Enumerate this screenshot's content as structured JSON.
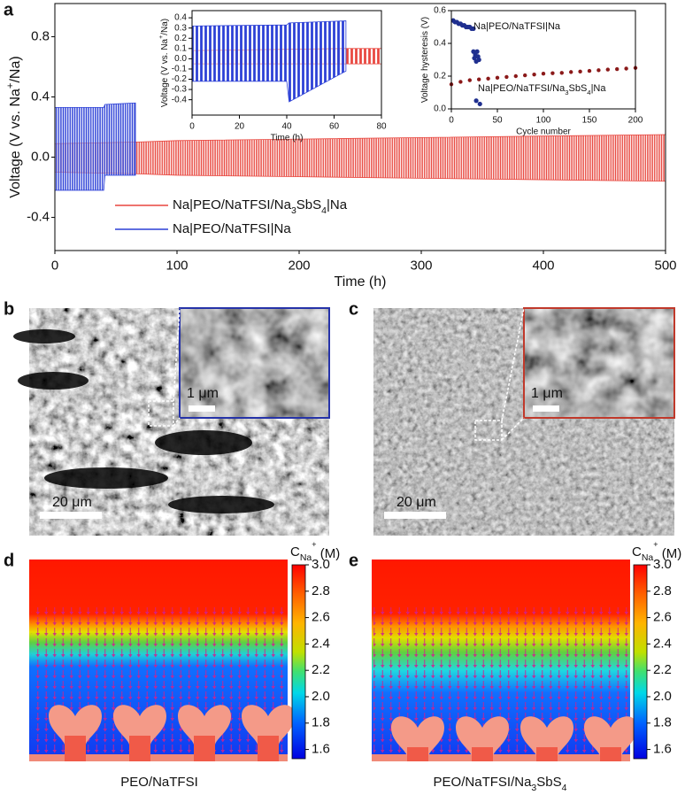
{
  "panel_labels": [
    "a",
    "b",
    "c",
    "d",
    "e"
  ],
  "chart_data": [
    {
      "type": "line",
      "ylabel": [
        "Voltage (V vs. Na",
        "+",
        "/Na)"
      ],
      "xlabel": "Time (h)",
      "xlim": [
        0,
        500
      ],
      "ylim": [
        -0.62,
        1.02
      ],
      "xticks": [
        0,
        100,
        200,
        300,
        400,
        500
      ],
      "yticks": [
        -0.4,
        {
          "value": 0,
          "label": "0.0"
        },
        0.4,
        0.8
      ],
      "series": [
        {
          "name": [
            "Na|PEO/NaTFSI/Na",
            "3",
            "SbS",
            "4",
            "|Na"
          ],
          "color": "#e8473f",
          "x": [
            0,
            66,
            100,
            200,
            300,
            400,
            500
          ],
          "values": [
            0.09,
            0.1,
            0.11,
            0.12,
            0.13,
            0.14,
            0.15
          ],
          "lower": [
            -0.1,
            -0.11,
            -0.12,
            -0.13,
            -0.14,
            -0.15,
            -0.16
          ]
        },
        {
          "name": [
            "Na|PEO/NaTFSI|Na"
          ],
          "color": "#2b3fd6",
          "x": [
            0,
            40,
            41,
            66
          ],
          "values": [
            0.33,
            0.33,
            0.35,
            0.36
          ],
          "lower": [
            -0.22,
            -0.22,
            -0.12,
            -0.12
          ]
        }
      ]
    },
    {
      "type": "line",
      "ylabel": [
        "Voltage (V vs. Na",
        "+",
        "/Na)"
      ],
      "xlabel": "Time (h)",
      "xlim": [
        0,
        80
      ],
      "ylim": [
        -0.55,
        0.47
      ],
      "xticks": [
        0,
        20,
        40,
        60,
        80
      ],
      "yticks": [
        -0.4,
        -0.3,
        -0.2,
        -0.1,
        {
          "value": 0,
          "label": "0.0"
        },
        0.1,
        0.2,
        0.3,
        0.4
      ],
      "series": [
        {
          "color": "#e8473f",
          "x": [
            0,
            65,
            80
          ],
          "values": [
            0.08,
            0.1,
            0.1
          ],
          "lower": [
            -0.05,
            -0.05,
            -0.05
          ]
        },
        {
          "color": "#2b3fd6",
          "x": [
            0,
            40,
            41,
            65
          ],
          "values": [
            0.32,
            0.33,
            0.35,
            0.37
          ],
          "lower": [
            -0.22,
            -0.22,
            -0.42,
            -0.12
          ]
        }
      ]
    },
    {
      "type": "scatter",
      "ylabel": [
        "Voltage hysteresis (V)"
      ],
      "xlabel": "Cycle number",
      "xlim": [
        0,
        200
      ],
      "ylim": [
        0,
        0.6
      ],
      "xticks": [
        0,
        50,
        100,
        150,
        200
      ],
      "yticks": [
        {
          "value": 0,
          "label": "0.0"
        },
        0.2,
        0.4,
        0.6
      ],
      "annotations": [
        [
          "Na|PEO/NaTFSI|Na"
        ],
        [
          "Na|PEO/NaTFSI/Na",
          "3",
          "SbS",
          "4",
          "|Na"
        ]
      ],
      "series": [
        {
          "color": "#8b1a1a",
          "x": [
            0,
            10,
            20,
            30,
            40,
            50,
            60,
            70,
            80,
            90,
            100,
            110,
            120,
            130,
            140,
            150,
            160,
            170,
            180,
            190,
            200
          ],
          "values": [
            0.15,
            0.165,
            0.175,
            0.18,
            0.185,
            0.19,
            0.195,
            0.2,
            0.205,
            0.21,
            0.215,
            0.218,
            0.22,
            0.225,
            0.228,
            0.232,
            0.236,
            0.24,
            0.243,
            0.246,
            0.25
          ]
        },
        {
          "color": "#1f2f8f",
          "x": [
            2,
            4,
            6,
            8,
            10,
            12,
            14,
            16,
            18,
            20,
            22,
            24,
            24,
            26,
            28,
            30,
            25,
            27,
            29,
            27,
            31
          ],
          "values": [
            0.54,
            0.53,
            0.53,
            0.52,
            0.52,
            0.51,
            0.51,
            0.5,
            0.5,
            0.5,
            0.49,
            0.49,
            0.35,
            0.33,
            0.35,
            0.3,
            0.31,
            0.29,
            0.32,
            0.05,
            0.03
          ]
        }
      ]
    }
  ],
  "sem": [
    {
      "scale": "20 μm",
      "inset_scale": "1 μm"
    },
    {
      "scale": "20 μm",
      "inset_scale": "1 μm"
    }
  ],
  "maps": [
    {
      "symbol": "C",
      "subscript": "Na",
      "superscript": "+",
      "unit": " (M)",
      "clim": [
        1.53,
        3.0
      ],
      "ticks": [
        {
          "value": 1.6,
          "label": "1.6"
        },
        {
          "value": 1.8,
          "label": "1.8"
        },
        {
          "value": 2,
          "label": "2.0"
        },
        {
          "value": 2.2,
          "label": "2.2"
        },
        {
          "value": 2.4,
          "label": "2.4"
        },
        {
          "value": 2.6,
          "label": "2.6"
        },
        {
          "value": 2.8,
          "label": "2.8"
        },
        {
          "value": 3,
          "label": "3.0"
        }
      ],
      "caption": [
        "PEO/NaTFSI"
      ]
    },
    {
      "symbol": "C",
      "subscript": "Na",
      "superscript": "+",
      "unit": " (M)",
      "clim": [
        1.53,
        3.0
      ],
      "ticks": [
        {
          "value": 1.6,
          "label": "1.6"
        },
        {
          "value": 1.8,
          "label": "1.8"
        },
        {
          "value": 2,
          "label": "2.0"
        },
        {
          "value": 2.2,
          "label": "2.2"
        },
        {
          "value": 2.4,
          "label": "2.4"
        },
        {
          "value": 2.6,
          "label": "2.6"
        },
        {
          "value": 2.8,
          "label": "2.8"
        },
        {
          "value": 3,
          "label": "3.0"
        }
      ],
      "caption": [
        "PEO/NaTFSI/Na",
        "3",
        "SbS",
        "4"
      ]
    }
  ]
}
